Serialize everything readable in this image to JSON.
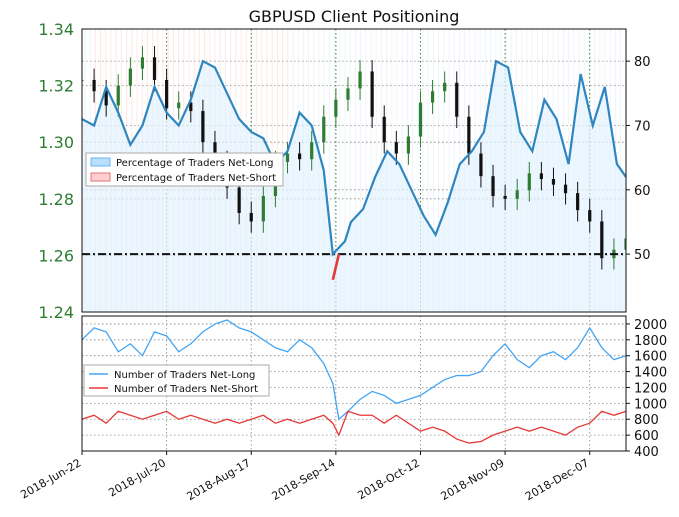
{
  "chart_data": [
    {
      "type": "candlestick+line",
      "title": "GBPUSD Client Positioning",
      "x_tick_labels": [
        "2018-Jun-22",
        "2018-Jul-20",
        "2018-Aug-17",
        "2018-Sep-14",
        "2018-Oct-12",
        "2018-Nov-09",
        "2018-Dec-07"
      ],
      "x_range": [
        "2018-06-22",
        "2018-12-19"
      ],
      "y_left": {
        "ticks": [
          "1.24",
          "1.26",
          "1.28",
          "1.30",
          "1.32",
          "1.34"
        ],
        "range": [
          1.24,
          1.34
        ],
        "color": "#2e7d32"
      },
      "y_right": {
        "ticks": [
          "50",
          "60",
          "70",
          "80"
        ],
        "range": [
          41,
          85
        ]
      },
      "reference_line_right": 50,
      "grid": true,
      "legend_position": "left",
      "legend": [
        "Percentage of Traders Net-Long",
        "Percentage of Traders Net-Short"
      ],
      "series": [
        {
          "name": "Percentage of Traders Net-Long",
          "axis": "right",
          "color": "#2e86c1",
          "x": [
            "2018-06-22",
            "2018-06-26",
            "2018-06-30",
            "2018-07-04",
            "2018-07-08",
            "2018-07-12",
            "2018-07-16",
            "2018-07-20",
            "2018-07-24",
            "2018-07-28",
            "2018-08-01",
            "2018-08-05",
            "2018-08-09",
            "2018-08-13",
            "2018-08-17",
            "2018-08-21",
            "2018-08-25",
            "2018-08-29",
            "2018-09-02",
            "2018-09-06",
            "2018-09-10",
            "2018-09-13",
            "2018-09-15",
            "2018-09-17",
            "2018-09-19",
            "2018-09-23",
            "2018-09-27",
            "2018-10-01",
            "2018-10-05",
            "2018-10-09",
            "2018-10-13",
            "2018-10-17",
            "2018-10-21",
            "2018-10-25",
            "2018-10-29",
            "2018-11-02",
            "2018-11-06",
            "2018-11-10",
            "2018-11-14",
            "2018-11-18",
            "2018-11-22",
            "2018-11-26",
            "2018-11-30",
            "2018-12-04",
            "2018-12-08",
            "2018-12-12",
            "2018-12-16",
            "2018-12-19"
          ],
          "y": [
            71,
            70,
            76,
            72,
            67,
            70,
            76,
            72,
            70,
            74,
            80,
            79,
            75,
            71,
            69,
            68,
            64,
            66,
            72,
            70,
            63,
            50,
            51,
            52,
            55,
            57,
            62,
            66,
            64,
            60,
            56,
            53,
            58,
            64,
            66,
            69,
            80,
            79,
            69,
            66,
            74,
            71,
            64,
            78,
            70,
            76,
            64,
            62
          ]
        },
        {
          "name": "Percentage of Traders Net-Short",
          "axis": "right",
          "color": "#e53935",
          "x": [
            "2018-09-13",
            "2018-09-15"
          ],
          "y": [
            46,
            50
          ]
        }
      ],
      "price_series": {
        "name": "GBPUSD",
        "axis": "left",
        "color_up": "#2e7d32",
        "color_down": "#111111",
        "x": [
          "2018-06-22",
          "2018-06-26",
          "2018-06-30",
          "2018-07-04",
          "2018-07-08",
          "2018-07-12",
          "2018-07-16",
          "2018-07-20",
          "2018-07-24",
          "2018-07-28",
          "2018-08-01",
          "2018-08-05",
          "2018-08-09",
          "2018-08-13",
          "2018-08-17",
          "2018-08-21",
          "2018-08-25",
          "2018-08-29",
          "2018-09-02",
          "2018-09-06",
          "2018-09-10",
          "2018-09-14",
          "2018-09-18",
          "2018-09-22",
          "2018-09-26",
          "2018-09-30",
          "2018-10-04",
          "2018-10-08",
          "2018-10-12",
          "2018-10-16",
          "2018-10-20",
          "2018-10-24",
          "2018-10-28",
          "2018-11-01",
          "2018-11-05",
          "2018-11-09",
          "2018-11-13",
          "2018-11-17",
          "2018-11-21",
          "2018-11-25",
          "2018-11-29",
          "2018-12-03",
          "2018-12-07",
          "2018-12-11",
          "2018-12-15",
          "2018-12-19"
        ],
        "close": [
          1.322,
          1.318,
          1.313,
          1.32,
          1.326,
          1.33,
          1.322,
          1.312,
          1.314,
          1.311,
          1.3,
          1.293,
          1.284,
          1.275,
          1.272,
          1.281,
          1.293,
          1.296,
          1.294,
          1.3,
          1.309,
          1.315,
          1.319,
          1.325,
          1.309,
          1.3,
          1.296,
          1.302,
          1.314,
          1.318,
          1.321,
          1.309,
          1.296,
          1.288,
          1.281,
          1.28,
          1.283,
          1.289,
          1.287,
          1.285,
          1.282,
          1.276,
          1.272,
          1.259,
          1.262,
          1.266
        ]
      }
    },
    {
      "type": "line",
      "x_range": [
        "2018-06-22",
        "2018-12-19"
      ],
      "y_right": {
        "ticks": [
          "400",
          "600",
          "800",
          "1000",
          "1200",
          "1400",
          "1600",
          "1800",
          "2000"
        ],
        "range": [
          400,
          2100
        ]
      },
      "grid": true,
      "legend_position": "left",
      "legend": [
        "Number of Traders Net-Long",
        "Number of Traders Net-Short"
      ],
      "series": [
        {
          "name": "Number of Traders Net-Long",
          "color": "#42a5f5",
          "x": [
            "2018-06-22",
            "2018-06-26",
            "2018-06-30",
            "2018-07-04",
            "2018-07-08",
            "2018-07-12",
            "2018-07-16",
            "2018-07-20",
            "2018-07-24",
            "2018-07-28",
            "2018-08-01",
            "2018-08-05",
            "2018-08-09",
            "2018-08-13",
            "2018-08-17",
            "2018-08-21",
            "2018-08-25",
            "2018-08-29",
            "2018-09-02",
            "2018-09-06",
            "2018-09-10",
            "2018-09-13",
            "2018-09-15",
            "2018-09-18",
            "2018-09-22",
            "2018-09-26",
            "2018-09-30",
            "2018-10-04",
            "2018-10-08",
            "2018-10-12",
            "2018-10-16",
            "2018-10-20",
            "2018-10-24",
            "2018-10-28",
            "2018-11-01",
            "2018-11-05",
            "2018-11-09",
            "2018-11-13",
            "2018-11-17",
            "2018-11-21",
            "2018-11-25",
            "2018-11-29",
            "2018-12-03",
            "2018-12-07",
            "2018-12-11",
            "2018-12-15",
            "2018-12-19"
          ],
          "y": [
            1800,
            1950,
            1900,
            1650,
            1750,
            1600,
            1900,
            1850,
            1650,
            1750,
            1900,
            2000,
            2050,
            1950,
            1900,
            1800,
            1700,
            1650,
            1800,
            1700,
            1500,
            1250,
            800,
            900,
            1050,
            1150,
            1100,
            1000,
            1050,
            1100,
            1200,
            1300,
            1350,
            1350,
            1400,
            1600,
            1750,
            1550,
            1450,
            1600,
            1650,
            1550,
            1700,
            1950,
            1700,
            1550,
            1600
          ]
        },
        {
          "name": "Number of Traders Net-Short",
          "color": "#e53935",
          "x": [
            "2018-06-22",
            "2018-06-26",
            "2018-06-30",
            "2018-07-04",
            "2018-07-08",
            "2018-07-12",
            "2018-07-16",
            "2018-07-20",
            "2018-07-24",
            "2018-07-28",
            "2018-08-01",
            "2018-08-05",
            "2018-08-09",
            "2018-08-13",
            "2018-08-17",
            "2018-08-21",
            "2018-08-25",
            "2018-08-29",
            "2018-09-02",
            "2018-09-06",
            "2018-09-10",
            "2018-09-13",
            "2018-09-15",
            "2018-09-18",
            "2018-09-22",
            "2018-09-26",
            "2018-09-30",
            "2018-10-04",
            "2018-10-08",
            "2018-10-12",
            "2018-10-16",
            "2018-10-20",
            "2018-10-24",
            "2018-10-28",
            "2018-11-01",
            "2018-11-05",
            "2018-11-09",
            "2018-11-13",
            "2018-11-17",
            "2018-11-21",
            "2018-11-25",
            "2018-11-29",
            "2018-12-03",
            "2018-12-07",
            "2018-12-11",
            "2018-12-15",
            "2018-12-19"
          ],
          "y": [
            800,
            850,
            750,
            900,
            850,
            800,
            850,
            900,
            800,
            850,
            800,
            750,
            800,
            750,
            800,
            850,
            750,
            800,
            750,
            800,
            850,
            750,
            600,
            900,
            850,
            850,
            750,
            850,
            750,
            650,
            700,
            650,
            550,
            500,
            520,
            600,
            650,
            700,
            650,
            700,
            650,
            600,
            700,
            750,
            900,
            850,
            900
          ]
        }
      ]
    }
  ]
}
